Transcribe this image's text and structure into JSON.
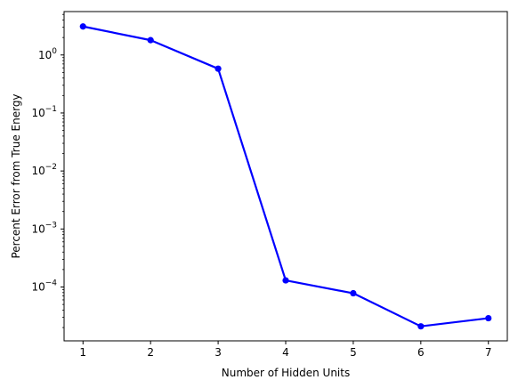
{
  "chart_data": {
    "type": "line",
    "x": [
      1,
      2,
      3,
      4,
      5,
      6,
      7
    ],
    "series": [
      {
        "values": [
          3.1,
          1.8,
          0.58,
          0.00013,
          7.8e-05,
          2.1e-05,
          2.9e-05
        ],
        "color": "#0000ff",
        "marker": "circle"
      }
    ],
    "title": "",
    "xlabel": "Number of Hidden Units",
    "ylabel": "Percent Error from True Energy",
    "xlim": [
      0.72,
      7.28
    ],
    "ylim": [
      1.18e-05,
      5.6
    ],
    "yscale": "log",
    "grid": false,
    "x_tick_labels": [
      "1",
      "2",
      "3",
      "4",
      "5",
      "6",
      "7"
    ],
    "y_tick_labels": [
      {
        "base": "10",
        "exp": "0"
      },
      {
        "base": "10",
        "exp": "−1"
      },
      {
        "base": "10",
        "exp": "−2"
      },
      {
        "base": "10",
        "exp": "−3"
      },
      {
        "base": "10",
        "exp": "−4"
      }
    ]
  }
}
